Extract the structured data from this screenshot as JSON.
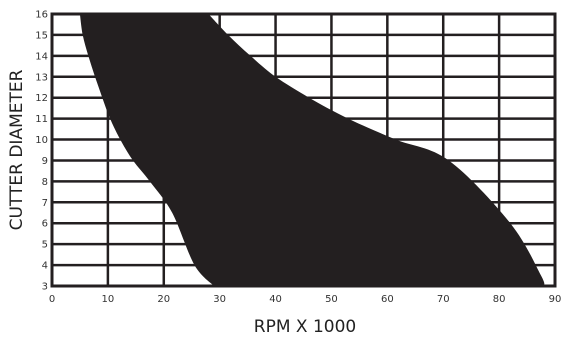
{
  "chart_data": {
    "type": "area",
    "title": "",
    "xlabel": "RPM X 1000",
    "ylabel": "CUTTER DIAMETER",
    "xlim": [
      0,
      90
    ],
    "ylim": [
      3,
      16
    ],
    "x_ticks": [
      0,
      10,
      20,
      30,
      40,
      50,
      60,
      70,
      80,
      90
    ],
    "y_ticks": [
      3,
      4,
      5,
      6,
      7,
      8,
      9,
      10,
      11,
      12,
      13,
      14,
      15,
      16
    ],
    "grid": true,
    "fill_color": "#231f20",
    "series": [
      {
        "role": "lower_boundary",
        "x": [
          5.0,
          5.5,
          6.5,
          7.7,
          9.0,
          10.4,
          12.2,
          14.5,
          17.5,
          21.5,
          25.5,
          29.0
        ],
        "y": [
          16,
          15,
          14,
          13,
          12,
          11,
          10,
          9,
          8,
          6.5,
          4,
          3
        ]
      },
      {
        "role": "upper_boundary",
        "x": [
          28.0,
          31.5,
          35.5,
          40.0,
          46.0,
          53.0,
          61.5,
          71.0,
          82.0,
          87.5,
          88.0
        ],
        "y": [
          16,
          15,
          14,
          13,
          12,
          11,
          10,
          9,
          6,
          3.5,
          3
        ]
      }
    ]
  }
}
